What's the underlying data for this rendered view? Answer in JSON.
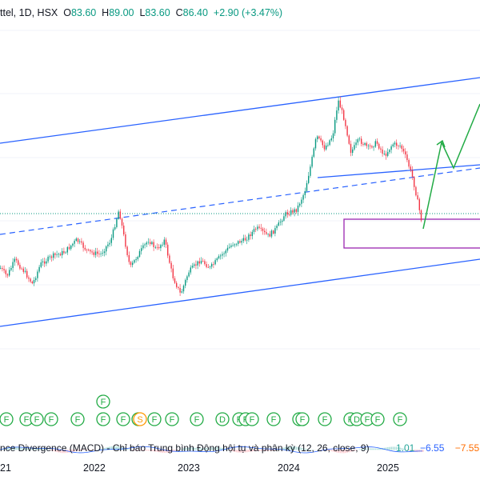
{
  "header": {
    "symbol": "ttel, 1D, HSX",
    "open_label": "O",
    "open": "83.60",
    "high_label": "H",
    "high": "89.00",
    "low_label": "L",
    "low": "83.60",
    "close_label": "C",
    "close": "86.40",
    "change": "+2.90 (+3.47%)"
  },
  "indicator": {
    "title": "nce Divergence (MACD) - Chỉ báo Trung bình Động hội tụ và phân kỳ (12, 26, close, 9)",
    "v1": "1.01",
    "v2": "−6.55",
    "v3": "−7.55"
  },
  "colors": {
    "candle_up": "#089981",
    "candle_down": "#f23645",
    "channel": "#2962ff",
    "projection": "#22ab45",
    "box": "#9c27b0",
    "price_line": "#089981",
    "event_marker": "#22ab45",
    "event_marker_alt": "#ff9800"
  },
  "chart_data": {
    "type": "candlestick",
    "x_ticks": [
      "21",
      "2022",
      "2023",
      "2024",
      "2025"
    ],
    "last_close": 86.4,
    "grid": false,
    "event_markers": [
      "F",
      "F",
      "F",
      "F",
      "F",
      "F",
      "F",
      "F",
      "S",
      "F",
      "F",
      "F",
      "D",
      "F",
      "F",
      "F",
      "F",
      "F",
      "F",
      "F",
      "F",
      "D",
      "F",
      "F",
      "F"
    ],
    "annotations": [
      "ascending channel",
      "channel midline",
      "support zone box",
      "projected path"
    ]
  }
}
